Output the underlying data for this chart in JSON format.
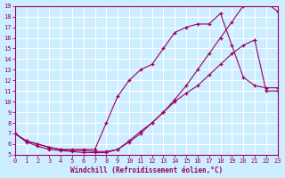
{
  "xlabel": "Windchill (Refroidissement éolien,°C)",
  "xlim": [
    0,
    23
  ],
  "ylim": [
    5,
    19
  ],
  "xticks": [
    0,
    1,
    2,
    3,
    4,
    5,
    6,
    7,
    8,
    9,
    10,
    11,
    12,
    13,
    14,
    15,
    16,
    17,
    18,
    19,
    20,
    21,
    22,
    23
  ],
  "yticks": [
    5,
    6,
    7,
    8,
    9,
    10,
    11,
    12,
    13,
    14,
    15,
    16,
    17,
    18,
    19
  ],
  "bg_color": "#cceeff",
  "line_color": "#990066",
  "grid_color": "#ffffff",
  "line1_x": [
    0,
    1,
    2,
    3,
    4,
    5,
    6,
    7,
    8,
    9,
    10,
    11,
    12,
    13,
    14,
    15,
    16,
    17,
    18,
    19,
    20,
    21,
    22,
    23
  ],
  "line1_y": [
    7.0,
    6.3,
    6.0,
    5.7,
    5.5,
    5.5,
    5.5,
    5.5,
    8.0,
    10.5,
    12.0,
    13.0,
    13.5,
    15.0,
    16.5,
    17.0,
    17.3,
    17.3,
    18.3,
    15.3,
    12.3,
    11.5,
    11.3,
    11.3
  ],
  "line2_x": [
    0,
    1,
    2,
    3,
    4,
    5,
    6,
    7,
    8,
    9,
    10,
    11,
    12,
    13,
    14,
    15,
    16,
    17,
    18,
    19,
    20,
    21,
    22,
    23
  ],
  "line2_y": [
    7.0,
    6.3,
    6.0,
    5.7,
    5.5,
    5.4,
    5.4,
    5.3,
    5.3,
    5.5,
    6.2,
    7.0,
    8.0,
    9.0,
    10.2,
    11.5,
    13.0,
    14.5,
    16.0,
    17.5,
    19.0,
    19.2,
    19.3,
    18.5
  ],
  "line3_x": [
    0,
    1,
    2,
    3,
    4,
    5,
    6,
    7,
    8,
    9,
    10,
    11,
    12,
    13,
    14,
    15,
    16,
    17,
    18,
    19,
    20,
    21,
    22,
    23
  ],
  "line3_y": [
    7.0,
    6.2,
    5.8,
    5.5,
    5.4,
    5.3,
    5.2,
    5.2,
    5.2,
    5.5,
    6.3,
    7.2,
    8.0,
    9.0,
    10.0,
    10.8,
    11.5,
    12.5,
    13.5,
    14.5,
    15.3,
    15.8,
    11.0,
    11.0
  ]
}
